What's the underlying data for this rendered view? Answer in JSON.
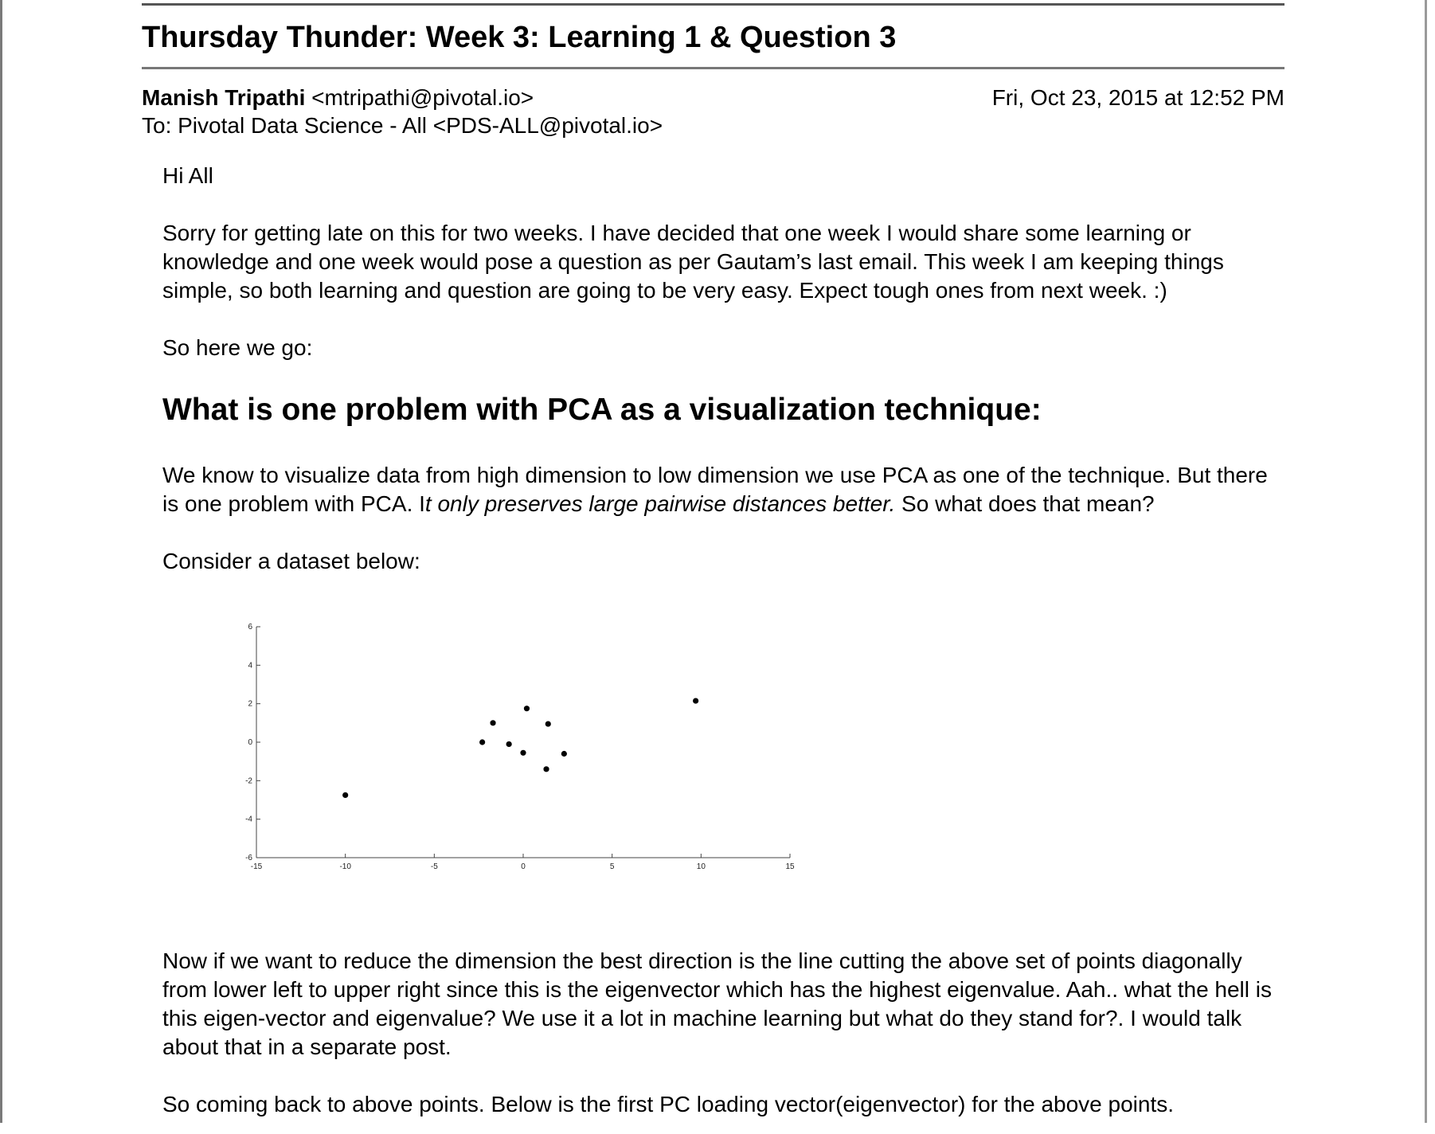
{
  "email": {
    "subject": "Thursday Thunder: Week 3: Learning 1 & Question 3",
    "sender_name": "Manish Tripathi",
    "sender_email": "<mtripathi@pivotal.io>",
    "date": "Fri, Oct 23, 2015 at 12:52 PM",
    "to": "To: Pivotal Data Science - All <PDS-ALL@pivotal.io>"
  },
  "body": {
    "greeting": "Hi All",
    "para1": "Sorry for getting late on this for two weeks. I have decided that one week I would share some learning or knowledge and one week would pose a question as per Gautam’s last email. This week I am keeping things simple, so both learning and question are going to be very easy. Expect tough ones from next week. :)",
    "para2": "So here we go:",
    "heading": "What is one problem with PCA as a visualization technique:",
    "para3_start": "We know to visualize data from high dimension to low dimension we use PCA as one of the technique. But there is one problem with PCA. I",
    "para3_italic": "t only preserves large pairwise distances better.",
    "para3_end": " So what does that mean?",
    "para4": "Consider a dataset below:",
    "para5": "Now if we want to reduce the dimension the best direction is the line cutting the above set of points diagonally from lower left to upper right since this is the eigenvector which has the highest eigenvalue. Aah.. what the hell is this eigen-vector and eigenvalue? We use it a lot in machine learning but what do they stand for?. I would talk about that in a separate post.",
    "para6": "So coming back to above points. Below is the first PC loading vector(eigenvector) for the above points."
  },
  "chart_data": {
    "type": "scatter",
    "title": "",
    "xlabel": "",
    "ylabel": "",
    "xlim": [
      -15,
      15
    ],
    "ylim": [
      -6,
      6
    ],
    "xticks": [
      -15,
      -10,
      -5,
      0,
      5,
      10,
      15
    ],
    "yticks": [
      -6,
      -4,
      -2,
      0,
      2,
      4,
      6
    ],
    "grid": false,
    "point_color": "#000000",
    "series": [
      {
        "x": [
          -10.0,
          -2.3,
          -1.7,
          -0.8,
          0.0,
          0.2,
          1.3,
          1.4,
          2.3,
          9.7
        ],
        "y": [
          -2.75,
          0.0,
          1.0,
          -0.1,
          -0.55,
          1.75,
          -1.4,
          0.95,
          -0.6,
          2.15
        ]
      }
    ]
  }
}
